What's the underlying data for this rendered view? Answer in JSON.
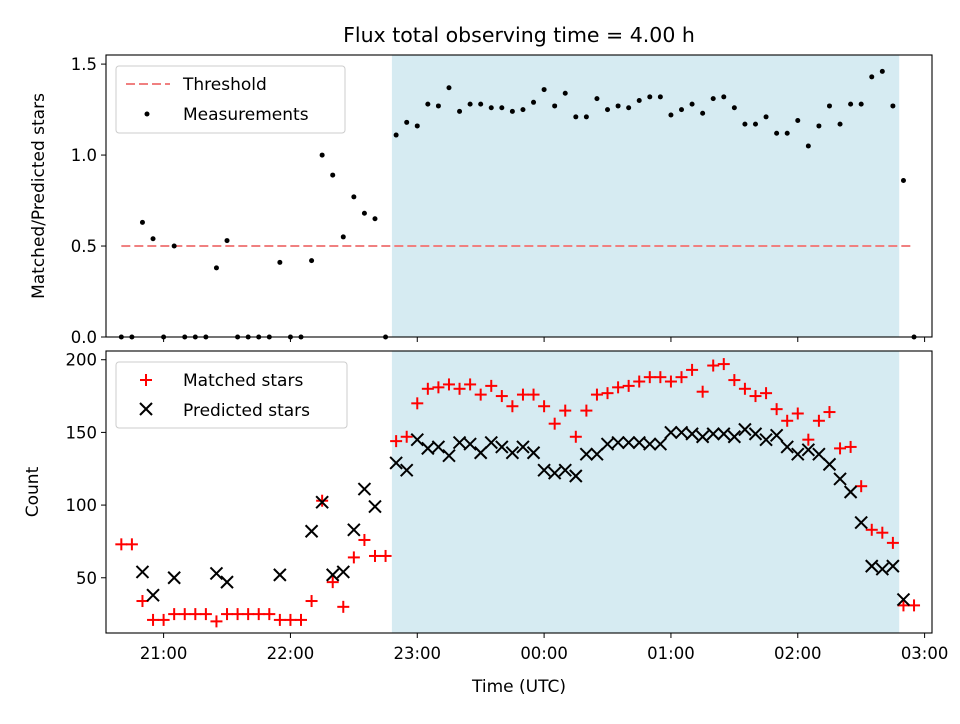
{
  "title": "Flux total observing time = 4.00 h",
  "colors": {
    "threshold": "#f08080",
    "measurements": "#000000",
    "matched": "#ff0000",
    "predicted": "#000000",
    "shade": "#add8e6"
  },
  "chart_data": [
    {
      "type": "scatter",
      "ylabel": "Matched/Predicted stars",
      "ylim": [
        0,
        1.55
      ],
      "yticks": [
        "0.0",
        "0.5",
        "1.0",
        "1.5"
      ],
      "ytick_values": [
        0,
        0.5,
        1.0,
        1.5
      ],
      "legend_position": "top-left",
      "shaded_interval": [
        "22:48",
        "02:48"
      ],
      "threshold": {
        "name": "Threshold",
        "value": 0.5,
        "x_range": [
          "20:40",
          "02:55"
        ],
        "style": "dashed"
      },
      "measurements": {
        "name": "Measurements",
        "points": [
          [
            "20:40",
            0
          ],
          [
            "20:45",
            0
          ],
          [
            "20:50",
            0.63
          ],
          [
            "20:55",
            0.54
          ],
          [
            "21:00",
            0
          ],
          [
            "21:05",
            0.5
          ],
          [
            "21:10",
            0
          ],
          [
            "21:15",
            0
          ],
          [
            "21:20",
            0
          ],
          [
            "21:25",
            0.38
          ],
          [
            "21:30",
            0.53
          ],
          [
            "21:35",
            0
          ],
          [
            "21:40",
            0
          ],
          [
            "21:45",
            0
          ],
          [
            "21:50",
            0
          ],
          [
            "21:55",
            0.41
          ],
          [
            "22:00",
            0
          ],
          [
            "22:05",
            0
          ],
          [
            "22:10",
            0.42
          ],
          [
            "22:15",
            1.0
          ],
          [
            "22:20",
            0.89
          ],
          [
            "22:25",
            0.55
          ],
          [
            "22:30",
            0.77
          ],
          [
            "22:35",
            0.68
          ],
          [
            "22:40",
            0.65
          ],
          [
            "22:45",
            0
          ],
          [
            "22:50",
            1.11
          ],
          [
            "22:55",
            1.18
          ],
          [
            "23:00",
            1.16
          ],
          [
            "23:05",
            1.28
          ],
          [
            "23:10",
            1.27
          ],
          [
            "23:15",
            1.37
          ],
          [
            "23:20",
            1.24
          ],
          [
            "23:25",
            1.28
          ],
          [
            "23:30",
            1.28
          ],
          [
            "23:35",
            1.26
          ],
          [
            "23:40",
            1.26
          ],
          [
            "23:45",
            1.24
          ],
          [
            "23:50",
            1.25
          ],
          [
            "23:55",
            1.29
          ],
          [
            "00:00",
            1.36
          ],
          [
            "00:05",
            1.27
          ],
          [
            "00:10",
            1.34
          ],
          [
            "00:15",
            1.21
          ],
          [
            "00:20",
            1.21
          ],
          [
            "00:25",
            1.31
          ],
          [
            "00:30",
            1.25
          ],
          [
            "00:35",
            1.27
          ],
          [
            "00:40",
            1.26
          ],
          [
            "00:45",
            1.3
          ],
          [
            "00:50",
            1.32
          ],
          [
            "00:55",
            1.32
          ],
          [
            "01:00",
            1.22
          ],
          [
            "01:05",
            1.25
          ],
          [
            "01:10",
            1.28
          ],
          [
            "01:15",
            1.23
          ],
          [
            "01:20",
            1.31
          ],
          [
            "01:25",
            1.32
          ],
          [
            "01:30",
            1.26
          ],
          [
            "01:35",
            1.17
          ],
          [
            "01:40",
            1.17
          ],
          [
            "01:45",
            1.21
          ],
          [
            "01:50",
            1.12
          ],
          [
            "01:55",
            1.12
          ],
          [
            "02:00",
            1.19
          ],
          [
            "02:05",
            1.05
          ],
          [
            "02:10",
            1.16
          ],
          [
            "02:15",
            1.27
          ],
          [
            "02:20",
            1.17
          ],
          [
            "02:25",
            1.28
          ],
          [
            "02:30",
            1.28
          ],
          [
            "02:35",
            1.43
          ],
          [
            "02:40",
            1.46
          ],
          [
            "02:45",
            1.27
          ],
          [
            "02:50",
            0.86
          ],
          [
            "02:55",
            0
          ]
        ]
      }
    },
    {
      "type": "scatter",
      "xlabel": "Time (UTC)",
      "ylabel": "Count",
      "ylim": [
        12,
        206
      ],
      "yticks": [
        "50",
        "100",
        "150",
        "200"
      ],
      "ytick_values": [
        50,
        100,
        150,
        200
      ],
      "xticks": [
        "21:00",
        "22:00",
        "23:00",
        "00:00",
        "01:00",
        "02:00",
        "03:00"
      ],
      "legend_position": "top-left",
      "shaded_interval": [
        "22:48",
        "02:48"
      ],
      "series": [
        {
          "name": "Matched stars",
          "marker": "plus",
          "points": [
            [
              "20:40",
              73
            ],
            [
              "20:45",
              73
            ],
            [
              "20:50",
              34
            ],
            [
              "20:55",
              21
            ],
            [
              "21:00",
              21
            ],
            [
              "21:05",
              25
            ],
            [
              "21:10",
              25
            ],
            [
              "21:15",
              25
            ],
            [
              "21:20",
              25
            ],
            [
              "21:25",
              20
            ],
            [
              "21:30",
              25
            ],
            [
              "21:35",
              25
            ],
            [
              "21:40",
              25
            ],
            [
              "21:45",
              25
            ],
            [
              "21:50",
              25
            ],
            [
              "21:55",
              21
            ],
            [
              "22:00",
              21
            ],
            [
              "22:05",
              21
            ],
            [
              "22:10",
              34
            ],
            [
              "22:15",
              103
            ],
            [
              "22:20",
              47
            ],
            [
              "22:25",
              30
            ],
            [
              "22:30",
              64
            ],
            [
              "22:35",
              76
            ],
            [
              "22:40",
              65
            ],
            [
              "22:45",
              65
            ],
            [
              "22:50",
              144
            ],
            [
              "22:55",
              147
            ],
            [
              "23:00",
              170
            ],
            [
              "23:05",
              180
            ],
            [
              "23:10",
              181
            ],
            [
              "23:15",
              183
            ],
            [
              "23:20",
              180
            ],
            [
              "23:25",
              183
            ],
            [
              "23:30",
              176
            ],
            [
              "23:35",
              182
            ],
            [
              "23:40",
              175
            ],
            [
              "23:45",
              168
            ],
            [
              "23:50",
              176
            ],
            [
              "23:55",
              176
            ],
            [
              "00:00",
              168
            ],
            [
              "00:05",
              156
            ],
            [
              "00:10",
              165
            ],
            [
              "00:15",
              147
            ],
            [
              "00:20",
              165
            ],
            [
              "00:25",
              176
            ],
            [
              "00:30",
              177
            ],
            [
              "00:35",
              181
            ],
            [
              "00:40",
              182
            ],
            [
              "00:45",
              185
            ],
            [
              "00:50",
              188
            ],
            [
              "00:55",
              188
            ],
            [
              "01:00",
              185
            ],
            [
              "01:05",
              188
            ],
            [
              "01:10",
              193
            ],
            [
              "01:15",
              178
            ],
            [
              "01:20",
              196
            ],
            [
              "01:25",
              197
            ],
            [
              "01:30",
              186
            ],
            [
              "01:35",
              180
            ],
            [
              "01:40",
              175
            ],
            [
              "01:45",
              177
            ],
            [
              "01:50",
              166
            ],
            [
              "01:55",
              158
            ],
            [
              "02:00",
              163
            ],
            [
              "02:05",
              145
            ],
            [
              "02:10",
              158
            ],
            [
              "02:15",
              164
            ],
            [
              "02:20",
              139
            ],
            [
              "02:25",
              140
            ],
            [
              "02:30",
              113
            ],
            [
              "02:35",
              83
            ],
            [
              "02:40",
              81
            ],
            [
              "02:45",
              74
            ],
            [
              "02:50",
              31
            ],
            [
              "02:55",
              31
            ]
          ]
        },
        {
          "name": "Predicted stars",
          "marker": "x",
          "points": [
            [
              "20:50",
              54
            ],
            [
              "20:55",
              38
            ],
            [
              "21:05",
              50
            ],
            [
              "21:25",
              53
            ],
            [
              "21:30",
              47
            ],
            [
              "21:55",
              52
            ],
            [
              "22:10",
              82
            ],
            [
              "22:15",
              102
            ],
            [
              "22:20",
              52
            ],
            [
              "22:25",
              54
            ],
            [
              "22:30",
              83
            ],
            [
              "22:35",
              111
            ],
            [
              "22:40",
              99
            ],
            [
              "22:50",
              129
            ],
            [
              "22:55",
              124
            ],
            [
              "23:00",
              145
            ],
            [
              "23:05",
              139
            ],
            [
              "23:10",
              140
            ],
            [
              "23:15",
              134
            ],
            [
              "23:20",
              143
            ],
            [
              "23:25",
              142
            ],
            [
              "23:30",
              136
            ],
            [
              "23:35",
              143
            ],
            [
              "23:40",
              140
            ],
            [
              "23:45",
              136
            ],
            [
              "23:50",
              140
            ],
            [
              "23:55",
              136
            ],
            [
              "00:00",
              124
            ],
            [
              "00:05",
              122
            ],
            [
              "00:10",
              124
            ],
            [
              "00:15",
              120
            ],
            [
              "00:20",
              135
            ],
            [
              "00:25",
              135
            ],
            [
              "00:30",
              142
            ],
            [
              "00:35",
              143
            ],
            [
              "00:40",
              143
            ],
            [
              "00:45",
              143
            ],
            [
              "00:50",
              142
            ],
            [
              "00:55",
              142
            ],
            [
              "01:00",
              150
            ],
            [
              "01:05",
              150
            ],
            [
              "01:10",
              149
            ],
            [
              "01:15",
              147
            ],
            [
              "01:20",
              149
            ],
            [
              "01:25",
              149
            ],
            [
              "01:30",
              147
            ],
            [
              "01:35",
              152
            ],
            [
              "01:40",
              149
            ],
            [
              "01:45",
              145
            ],
            [
              "01:50",
              148
            ],
            [
              "01:55",
              140
            ],
            [
              "02:00",
              135
            ],
            [
              "02:05",
              138
            ],
            [
              "02:10",
              135
            ],
            [
              "02:15",
              128
            ],
            [
              "02:20",
              118
            ],
            [
              "02:25",
              109
            ],
            [
              "02:30",
              88
            ],
            [
              "02:35",
              58
            ],
            [
              "02:40",
              56
            ],
            [
              "02:45",
              58
            ],
            [
              "02:50",
              35
            ]
          ]
        }
      ]
    }
  ]
}
